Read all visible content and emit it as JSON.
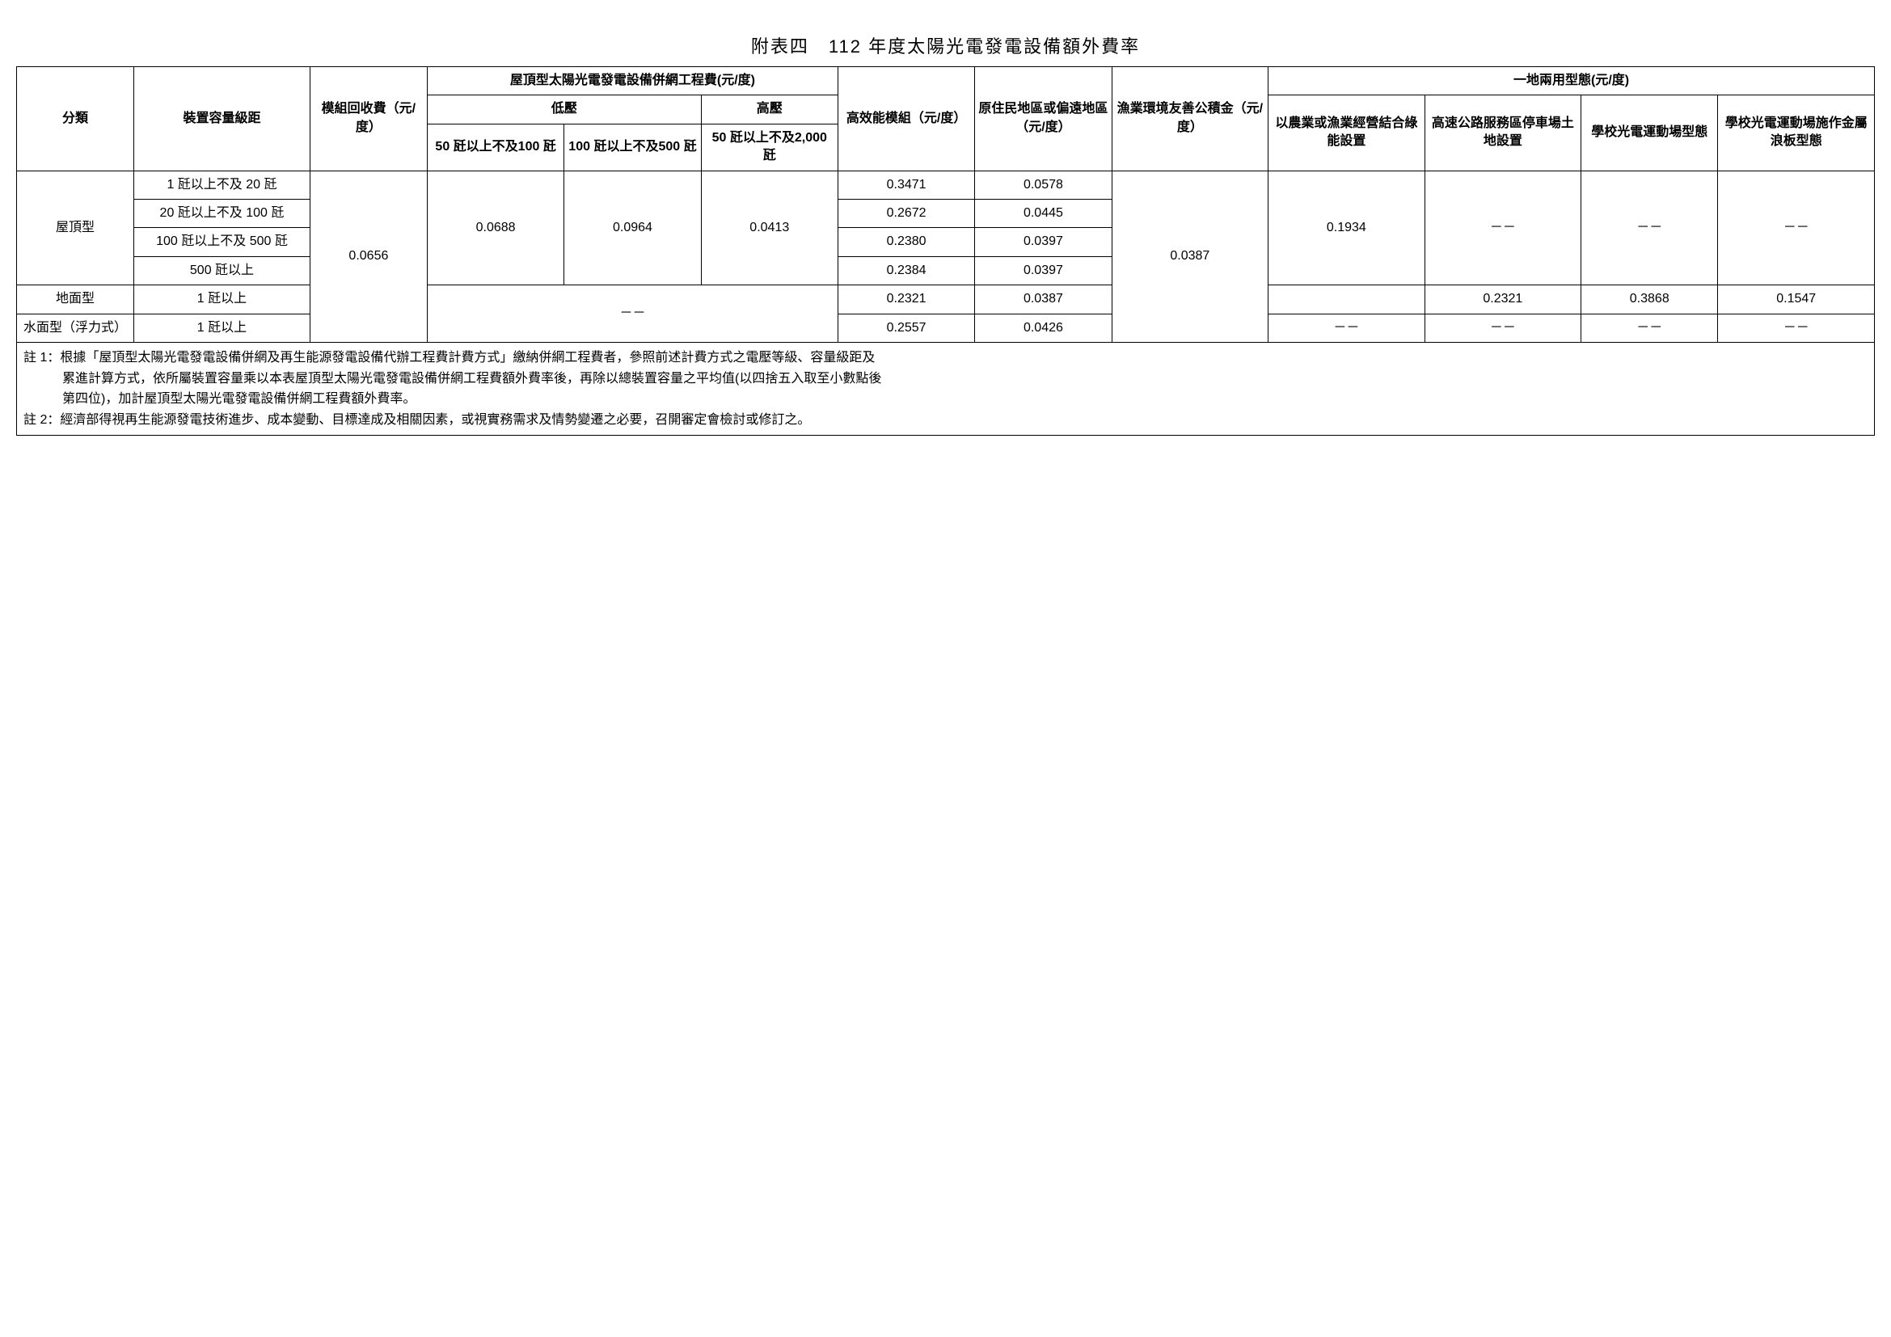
{
  "title": "附表四　112 年度太陽光電發電設備額外費率",
  "headers": {
    "category": "分類",
    "capacity": "裝置容量級距",
    "module_recycle": "模組回收費（元/度）",
    "grid_fee_group": "屋頂型太陽光電發電設備併網工程費(元/度)",
    "low_voltage": "低壓",
    "high_voltage": "高壓",
    "lv_sub1": "50 瓩以上不及100 瓩",
    "lv_sub2": "100 瓩以上不及500 瓩",
    "hv_sub1": "50 瓩以上不及2,000 瓩",
    "high_eff": "高效能模組（元/度）",
    "indigenous": "原住民地區或偏遠地區（元/度）",
    "fishery_env": "漁業環境友善公積金（元/度）",
    "dual_use_group": "一地兩用型態(元/度)",
    "dual1": "以農業或漁業經營結合綠能設置",
    "dual2": "高速公路服務區停車場土地設置",
    "dual3": "學校光電運動場型態",
    "dual4": "學校光電運動場施作金屬浪板型態"
  },
  "rows": {
    "rooftop_label": "屋頂型",
    "ground_label": "地面型",
    "water_label": "水面型（浮力式）",
    "cap_r1": "1 瓩以上不及 20 瓩",
    "cap_r2": "20 瓩以上不及 100 瓩",
    "cap_r3": "100 瓩以上不及 500 瓩",
    "cap_r4": "500 瓩以上",
    "cap_g": "1 瓩以上",
    "cap_w": "1 瓩以上"
  },
  "values": {
    "module_recycle": "0.0656",
    "lv1": "0.0688",
    "lv2": "0.0964",
    "hv1": "0.0413",
    "r1_eff": "0.3471",
    "r1_ind": "0.0578",
    "r2_eff": "0.2672",
    "r2_ind": "0.0445",
    "r3_eff": "0.2380",
    "r3_ind": "0.0397",
    "r4_eff": "0.2384",
    "r4_ind": "0.0397",
    "g_eff": "0.2321",
    "g_ind": "0.0387",
    "w_eff": "0.2557",
    "w_ind": "0.0426",
    "fishery": "0.0387",
    "dual1_roof": "0.1934",
    "dual2_g": "0.2321",
    "dual3_g": "0.3868",
    "dual4_g": "0.1547",
    "dash": "－－"
  },
  "notes": {
    "n1a": "註 1：根據「屋頂型太陽光電發電設備併網及再生能源發電設備代辦工程費計費方式」繳納併網工程費者，參照前述計費方式之電壓等級、容量級距及",
    "n1b": "累進計算方式，依所屬裝置容量乘以本表屋頂型太陽光電發電設備併網工程費額外費率後，再除以總裝置容量之平均值(以四捨五入取至小數點後",
    "n1c": "第四位)，加計屋頂型太陽光電發電設備併網工程費額外費率。",
    "n2": "註 2：經濟部得視再生能源發電技術進步、成本變動、目標達成及相關因素，或視實務需求及情勢變遷之必要，召開審定會檢討或修訂之。"
  }
}
